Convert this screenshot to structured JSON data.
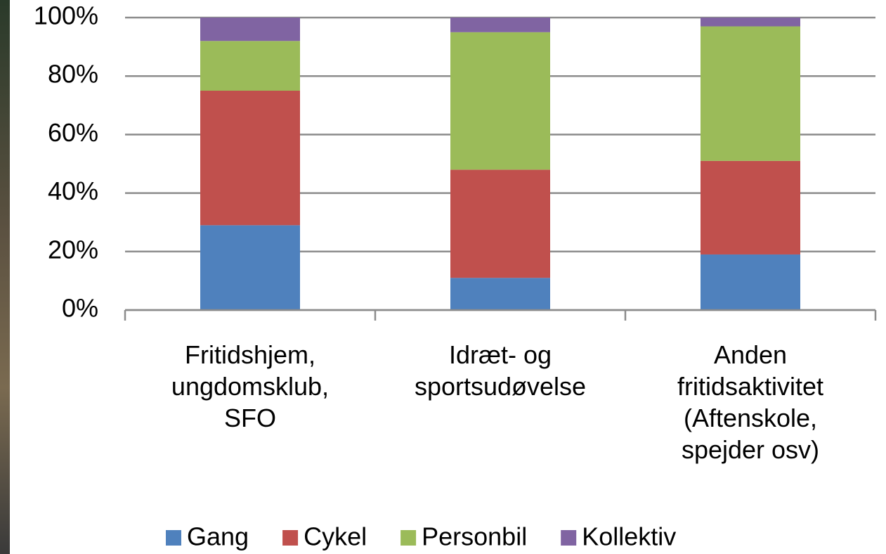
{
  "chart_data": {
    "type": "stacked_bar",
    "categories": [
      "Fritidshjem,\nungdomsklub,\nSFO",
      "Idræt- og\nsportsudøvelse",
      "Anden\nfritidsaktivitet\n(Aftenskole,\nspejder osv)"
    ],
    "series": [
      {
        "name": "Gang",
        "color": "#4f81bd",
        "values": [
          29,
          11,
          19
        ]
      },
      {
        "name": "Cykel",
        "color": "#c0504d",
        "values": [
          46,
          37,
          32
        ]
      },
      {
        "name": "Personbil",
        "color": "#9bbb59",
        "values": [
          17,
          47,
          46
        ]
      },
      {
        "name": "Kollektiv",
        "color": "#8064a2",
        "values": [
          8,
          5,
          3
        ]
      }
    ],
    "ylim": [
      0,
      100
    ],
    "yticks": [
      {
        "value": 0,
        "label": "0%"
      },
      {
        "value": 20,
        "label": "20%"
      },
      {
        "value": 40,
        "label": "40%"
      },
      {
        "value": 60,
        "label": "60%"
      },
      {
        "value": 80,
        "label": "80%"
      },
      {
        "value": 100,
        "label": "100%"
      }
    ],
    "grid": true,
    "legend": "bottom"
  }
}
